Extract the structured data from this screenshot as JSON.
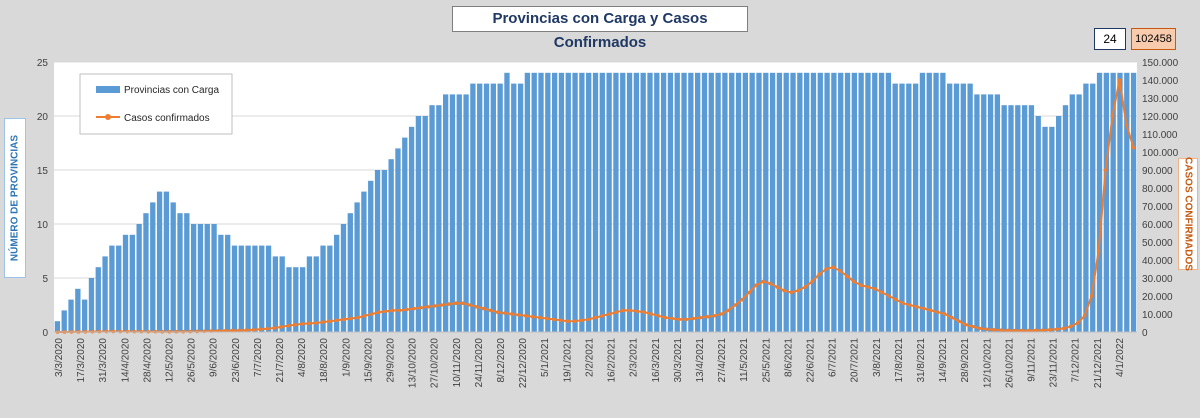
{
  "chart_data": {
    "type": "bar",
    "title": "Provincias con Carga y Casos Confirmados",
    "kpi_provinces": "24",
    "kpi_cases": "102458",
    "ylabel_left": "NÚMERO DE PROVINCIAS",
    "ylabel_right": "CASOS CONFIRMADOS",
    "ylim_left": [
      0,
      25
    ],
    "ylim_right": [
      0,
      150000
    ],
    "left_ticks": [
      "0",
      "5",
      "10",
      "15",
      "20",
      "25"
    ],
    "right_ticks": [
      "0",
      "10.000",
      "20.000",
      "30.000",
      "40.000",
      "50.000",
      "60.000",
      "70.000",
      "80.000",
      "90.000",
      "100.000",
      "110.000",
      "120.000",
      "130.000",
      "140.000",
      "150.000"
    ],
    "x_tick_labels": [
      "3/3/2020",
      "17/3/2020",
      "31/3/2020",
      "14/4/2020",
      "28/4/2020",
      "12/5/2020",
      "26/5/2020",
      "9/6/2020",
      "23/6/2020",
      "7/7/2020",
      "21/7/2020",
      "4/8/2020",
      "18/8/2020",
      "1/9/2020",
      "15/9/2020",
      "29/9/2020",
      "13/10/2020",
      "27/10/2020",
      "10/11/2020",
      "24/11/2020",
      "8/12/2020",
      "22/12/2020",
      "5/1/2021",
      "19/1/2021",
      "2/2/2021",
      "16/2/2021",
      "2/3/2021",
      "16/3/2021",
      "30/3/2021",
      "13/4/2021",
      "27/4/2021",
      "11/5/2021",
      "25/5/2021",
      "8/6/2021",
      "22/6/2021",
      "6/7/2021",
      "20/7/2021",
      "3/8/2021",
      "17/8/2021",
      "31/8/2021",
      "14/9/2021",
      "28/9/2021",
      "12/10/2021",
      "26/10/2021",
      "9/11/2021",
      "23/11/2021",
      "7/12/2021",
      "21/12/2021",
      "4/1/2022"
    ],
    "legend": "top-left",
    "colors": {
      "bars": "#5b9bd5",
      "line": "#ed7d31"
    },
    "series": [
      {
        "name": "Provincias con Carga",
        "type": "bar",
        "axis": "left",
        "values": [
          1,
          2,
          3,
          4,
          3,
          5,
          6,
          7,
          8,
          8,
          9,
          9,
          10,
          11,
          12,
          13,
          13,
          12,
          11,
          11,
          10,
          10,
          10,
          10,
          9,
          9,
          8,
          8,
          8,
          8,
          8,
          8,
          7,
          7,
          6,
          6,
          6,
          7,
          7,
          8,
          8,
          9,
          10,
          11,
          12,
          13,
          14,
          15,
          15,
          16,
          17,
          18,
          19,
          20,
          20,
          21,
          21,
          22,
          22,
          22,
          22,
          23,
          23,
          23,
          23,
          23,
          24,
          23,
          23,
          24,
          24,
          24,
          24,
          24,
          24,
          24,
          24,
          24,
          24,
          24,
          24,
          24,
          24,
          24,
          24,
          24,
          24,
          24,
          24,
          24,
          24,
          24,
          24,
          24,
          24,
          24,
          24,
          24,
          24,
          24,
          24,
          24,
          24,
          24,
          24,
          24,
          24,
          24,
          24,
          24,
          24,
          24,
          24,
          24,
          24,
          24,
          24,
          24,
          24,
          24,
          24,
          24,
          24,
          23,
          23,
          23,
          23,
          24,
          24,
          24,
          24,
          23,
          23,
          23,
          23,
          22,
          22,
          22,
          22,
          21,
          21,
          21,
          21,
          21,
          20,
          19,
          19,
          20,
          21,
          22,
          22,
          23,
          23,
          24,
          24,
          24,
          24,
          24,
          24
        ]
      },
      {
        "name": "Casos confirmados",
        "type": "line",
        "axis": "right",
        "values": [
          5,
          20,
          50,
          100,
          150,
          200,
          250,
          300,
          300,
          280,
          260,
          250,
          230,
          200,
          180,
          150,
          150,
          170,
          200,
          250,
          300,
          400,
          500,
          600,
          700,
          800,
          900,
          1000,
          1200,
          1500,
          1800,
          2200,
          2800,
          3500,
          4000,
          4500,
          4800,
          5000,
          5500,
          6000,
          6500,
          7000,
          7500,
          8000,
          9000,
          10000,
          11000,
          11500,
          12000,
          12000,
          12500,
          13000,
          13500,
          14000,
          14500,
          15000,
          15500,
          16000,
          16000,
          15000,
          14000,
          13000,
          12000,
          11000,
          10500,
          10000,
          9500,
          9000,
          8500,
          8000,
          7500,
          7000,
          6500,
          6000,
          6000,
          6500,
          7000,
          8000,
          9000,
          10000,
          11000,
          12000,
          12000,
          11500,
          11000,
          10000,
          9000,
          8000,
          7500,
          7000,
          7000,
          7500,
          8000,
          8500,
          9000,
          10000,
          12000,
          15000,
          18000,
          22000,
          26000,
          28000,
          27000,
          25000,
          23000,
          22000,
          23000,
          25000,
          28000,
          32000,
          35000,
          36000,
          34000,
          31000,
          28000,
          26000,
          25000,
          24000,
          22000,
          20000,
          18000,
          16000,
          15000,
          14000,
          13000,
          12000,
          11000,
          10000,
          8000,
          6000,
          4000,
          3000,
          2000,
          1500,
          1200,
          1000,
          900,
          800,
          800,
          800,
          900,
          1000,
          1200,
          1500,
          2000,
          3000,
          5000,
          9000,
          20000,
          45000,
          90000,
          120000,
          140000,
          115000,
          102458
        ]
      }
    ]
  }
}
